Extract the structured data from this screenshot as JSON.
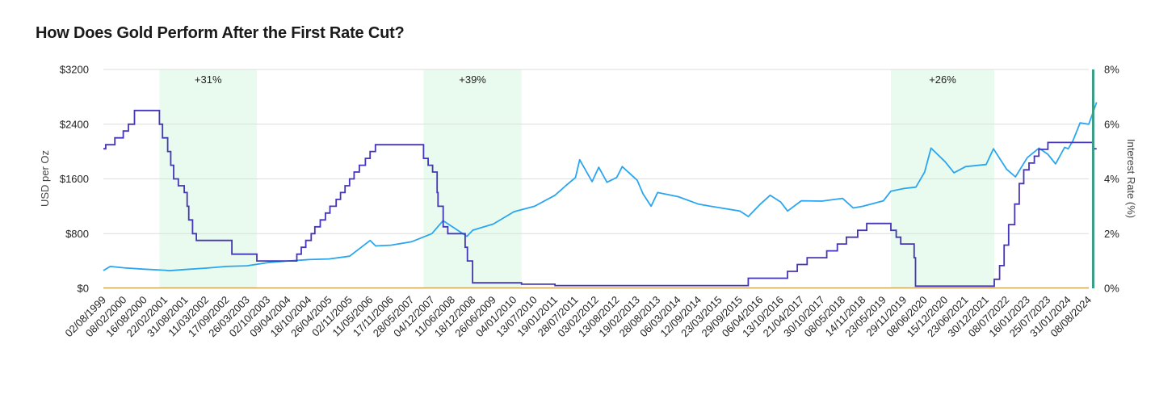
{
  "title": "How Does Gold Perform After the First Rate Cut?",
  "colors": {
    "gold": "#2aa6f0",
    "rate": "#4535b8",
    "band": "#e8fbee",
    "grid": "#dedede",
    "marker": "#3a9e86",
    "baseline": "#c8a050"
  },
  "chart_data": {
    "type": "line",
    "x_start": "02/08/1999",
    "x_end": "08/08/2024",
    "xlabel": "",
    "ylabel": "USD per Oz",
    "ylabel_right": "Interest Rate (%)",
    "ylim": [
      0,
      3200
    ],
    "ylim_right": [
      0,
      8
    ],
    "y_ticks": [
      "$0",
      "$800",
      "$1600",
      "$2400",
      "$3200"
    ],
    "y_ticks_right": [
      "0%",
      "2%",
      "4%",
      "6%",
      "8%"
    ],
    "x_tick_labels": [
      "02/08/1999",
      "08/02/2000",
      "16/08/2000",
      "22/02/2001",
      "31/08/2001",
      "11/03/2002",
      "17/09/2002",
      "26/03/2003",
      "02/10/2003",
      "09/04/2004",
      "18/10/2004",
      "26/04/2005",
      "02/11/2005",
      "11/05/2006",
      "17/11/2006",
      "28/05/2007",
      "04/12/2007",
      "11/06/2008",
      "18/12/2008",
      "26/06/2009",
      "04/01/2010",
      "13/07/2010",
      "19/01/2011",
      "28/07/2011",
      "03/02/2012",
      "13/08/2012",
      "19/02/2013",
      "28/08/2013",
      "06/03/2014",
      "12/09/2014",
      "23/03/2015",
      "29/09/2015",
      "06/04/2016",
      "13/10/2016",
      "21/04/2017",
      "30/10/2017",
      "08/05/2018",
      "14/11/2018",
      "23/05/2019",
      "29/11/2019",
      "08/06/2020",
      "15/12/2020",
      "23/06/2021",
      "30/12/2021",
      "08/07/2022",
      "16/01/2023",
      "25/07/2023",
      "31/01/2024",
      "08/08/2024"
    ],
    "bands": [
      {
        "start": "2001-01-03",
        "end": "2003-06-25",
        "label": "+31%"
      },
      {
        "start": "2007-09-18",
        "end": "2010-03-15",
        "label": "+39%"
      },
      {
        "start": "2019-07-31",
        "end": "2022-03-16",
        "label": "+26%"
      }
    ],
    "marker_line": "2024-09-18",
    "series": [
      {
        "name": "Gold",
        "axis": "left",
        "points": [
          [
            "1999-08-02",
            260
          ],
          [
            "1999-10-05",
            320
          ],
          [
            "2000-02-08",
            300
          ],
          [
            "2000-08-16",
            280
          ],
          [
            "2001-02-22",
            265
          ],
          [
            "2001-04-02",
            258
          ],
          [
            "2001-08-31",
            275
          ],
          [
            "2002-03-11",
            295
          ],
          [
            "2002-09-17",
            320
          ],
          [
            "2003-03-26",
            330
          ],
          [
            "2003-10-02",
            375
          ],
          [
            "2004-04-09",
            400
          ],
          [
            "2004-10-18",
            420
          ],
          [
            "2005-04-26",
            430
          ],
          [
            "2005-11-02",
            470
          ],
          [
            "2006-05-11",
            700
          ],
          [
            "2006-07-01",
            620
          ],
          [
            "2006-11-17",
            630
          ],
          [
            "2007-05-28",
            680
          ],
          [
            "2007-12-04",
            800
          ],
          [
            "2008-03-17",
            990
          ],
          [
            "2008-06-11",
            900
          ],
          [
            "2008-10-24",
            760
          ],
          [
            "2008-12-18",
            850
          ],
          [
            "2009-06-26",
            940
          ],
          [
            "2010-01-04",
            1120
          ],
          [
            "2010-07-13",
            1200
          ],
          [
            "2011-01-19",
            1360
          ],
          [
            "2011-04-28",
            1500
          ],
          [
            "2011-07-28",
            1620
          ],
          [
            "2011-09-05",
            1880
          ],
          [
            "2011-12-29",
            1560
          ],
          [
            "2012-02-29",
            1770
          ],
          [
            "2012-05-15",
            1550
          ],
          [
            "2012-08-13",
            1620
          ],
          [
            "2012-10-04",
            1780
          ],
          [
            "2013-02-19",
            1580
          ],
          [
            "2013-04-15",
            1380
          ],
          [
            "2013-06-28",
            1200
          ],
          [
            "2013-08-28",
            1400
          ],
          [
            "2014-03-06",
            1340
          ],
          [
            "2014-09-12",
            1230
          ],
          [
            "2014-12-31",
            1200
          ],
          [
            "2015-03-23",
            1180
          ],
          [
            "2015-09-29",
            1130
          ],
          [
            "2015-12-17",
            1050
          ],
          [
            "2016-04-06",
            1230
          ],
          [
            "2016-07-06",
            1360
          ],
          [
            "2016-10-13",
            1260
          ],
          [
            "2016-12-15",
            1130
          ],
          [
            "2017-04-21",
            1280
          ],
          [
            "2017-10-30",
            1275
          ],
          [
            "2018-05-08",
            1315
          ],
          [
            "2018-08-16",
            1175
          ],
          [
            "2018-11-14",
            1200
          ],
          [
            "2019-05-23",
            1280
          ],
          [
            "2019-07-31",
            1420
          ],
          [
            "2019-11-29",
            1460
          ],
          [
            "2020-03-19",
            1480
          ],
          [
            "2020-06-08",
            1700
          ],
          [
            "2020-08-06",
            2050
          ],
          [
            "2020-12-15",
            1850
          ],
          [
            "2021-03-08",
            1690
          ],
          [
            "2021-06-23",
            1780
          ],
          [
            "2021-12-30",
            1810
          ],
          [
            "2022-03-08",
            2040
          ],
          [
            "2022-07-08",
            1740
          ],
          [
            "2022-09-28",
            1630
          ],
          [
            "2023-01-16",
            1910
          ],
          [
            "2023-05-04",
            2050
          ],
          [
            "2023-07-25",
            1960
          ],
          [
            "2023-10-05",
            1820
          ],
          [
            "2023-12-28",
            2060
          ],
          [
            "2024-01-31",
            2040
          ],
          [
            "2024-03-15",
            2160
          ],
          [
            "2024-05-20",
            2420
          ],
          [
            "2024-08-08",
            2400
          ],
          [
            "2024-09-18",
            2580
          ],
          [
            "2024-10-20",
            2720
          ]
        ]
      },
      {
        "name": "Interest Rate",
        "axis": "right",
        "points": [
          [
            "1999-08-02",
            5.1
          ],
          [
            "1999-08-24",
            5.25
          ],
          [
            "1999-11-16",
            5.5
          ],
          [
            "2000-02-02",
            5.75
          ],
          [
            "2000-03-21",
            6.0
          ],
          [
            "2000-05-16",
            6.5
          ],
          [
            "2001-01-03",
            6.0
          ],
          [
            "2001-01-31",
            5.5
          ],
          [
            "2001-03-20",
            5.0
          ],
          [
            "2001-04-18",
            4.5
          ],
          [
            "2001-05-15",
            4.0
          ],
          [
            "2001-06-27",
            3.75
          ],
          [
            "2001-08-21",
            3.5
          ],
          [
            "2001-09-17",
            3.0
          ],
          [
            "2001-10-02",
            2.5
          ],
          [
            "2001-11-06",
            2.0
          ],
          [
            "2001-12-11",
            1.75
          ],
          [
            "2002-11-06",
            1.25
          ],
          [
            "2003-06-25",
            1.0
          ],
          [
            "2004-06-30",
            1.25
          ],
          [
            "2004-08-10",
            1.5
          ],
          [
            "2004-09-21",
            1.75
          ],
          [
            "2004-11-10",
            2.0
          ],
          [
            "2004-12-14",
            2.25
          ],
          [
            "2005-02-02",
            2.5
          ],
          [
            "2005-03-22",
            2.75
          ],
          [
            "2005-05-03",
            3.0
          ],
          [
            "2005-06-30",
            3.25
          ],
          [
            "2005-08-09",
            3.5
          ],
          [
            "2005-09-20",
            3.75
          ],
          [
            "2005-11-01",
            4.0
          ],
          [
            "2005-12-13",
            4.25
          ],
          [
            "2006-01-31",
            4.5
          ],
          [
            "2006-03-28",
            4.75
          ],
          [
            "2006-05-10",
            5.0
          ],
          [
            "2006-06-29",
            5.25
          ],
          [
            "2007-09-18",
            4.75
          ],
          [
            "2007-10-31",
            4.5
          ],
          [
            "2007-12-11",
            4.25
          ],
          [
            "2008-01-22",
            3.5
          ],
          [
            "2008-01-30",
            3.0
          ],
          [
            "2008-03-18",
            2.25
          ],
          [
            "2008-04-30",
            2.0
          ],
          [
            "2008-10-08",
            1.5
          ],
          [
            "2008-10-29",
            1.0
          ],
          [
            "2008-12-16",
            0.2
          ],
          [
            "2010-03-15",
            0.15
          ],
          [
            "2011-01-19",
            0.1
          ],
          [
            "2015-12-16",
            0.37
          ],
          [
            "2016-12-14",
            0.62
          ],
          [
            "2017-03-15",
            0.87
          ],
          [
            "2017-06-14",
            1.12
          ],
          [
            "2017-12-13",
            1.37
          ],
          [
            "2018-03-21",
            1.62
          ],
          [
            "2018-06-13",
            1.87
          ],
          [
            "2018-09-26",
            2.12
          ],
          [
            "2018-12-19",
            2.37
          ],
          [
            "2019-07-31",
            2.12
          ],
          [
            "2019-09-18",
            1.87
          ],
          [
            "2019-10-30",
            1.62
          ],
          [
            "2020-03-03",
            1.12
          ],
          [
            "2020-03-15",
            0.08
          ],
          [
            "2022-03-16",
            0.33
          ],
          [
            "2022-05-04",
            0.83
          ],
          [
            "2022-06-15",
            1.58
          ],
          [
            "2022-07-27",
            2.33
          ],
          [
            "2022-09-21",
            3.08
          ],
          [
            "2022-11-02",
            3.83
          ],
          [
            "2022-12-14",
            4.33
          ],
          [
            "2023-02-01",
            4.58
          ],
          [
            "2023-03-22",
            4.83
          ],
          [
            "2023-05-03",
            5.08
          ],
          [
            "2023-07-26",
            5.33
          ],
          [
            "2024-09-18",
            5.1
          ],
          [
            "2024-10-20",
            5.1
          ]
        ]
      }
    ]
  }
}
